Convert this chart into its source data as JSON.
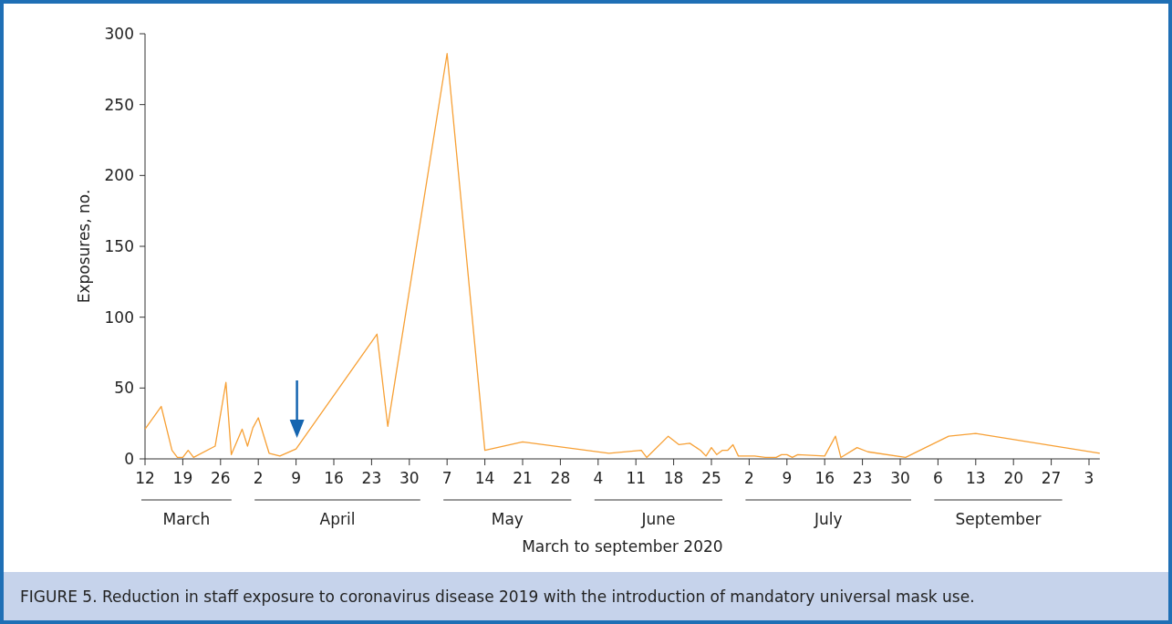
{
  "chart_data": {
    "type": "line",
    "xlabel": "March to september 2020",
    "ylabel": "Exposures, no.",
    "x": [
      "2020-03-12",
      "2020-03-15",
      "2020-03-17",
      "2020-03-18",
      "2020-03-19",
      "2020-03-20",
      "2020-03-21",
      "2020-03-25",
      "2020-03-27",
      "2020-03-28",
      "2020-03-30",
      "2020-03-31",
      "2020-04-01",
      "2020-04-02",
      "2020-04-04",
      "2020-04-06",
      "2020-04-09",
      "2020-04-24",
      "2020-04-26",
      "2020-05-07",
      "2020-05-14",
      "2020-05-21",
      "2020-06-06",
      "2020-06-12",
      "2020-06-13",
      "2020-06-17",
      "2020-06-19",
      "2020-06-21",
      "2020-06-23",
      "2020-06-24",
      "2020-06-25",
      "2020-06-26",
      "2020-06-27",
      "2020-06-28",
      "2020-06-29",
      "2020-06-30",
      "2020-07-03",
      "2020-07-05",
      "2020-07-07",
      "2020-07-08",
      "2020-07-09",
      "2020-07-10",
      "2020-07-11",
      "2020-07-16",
      "2020-07-18",
      "2020-07-19",
      "2020-07-22",
      "2020-07-24",
      "2020-07-31",
      "2020-08-08",
      "2020-08-13",
      "2020-09-05"
    ],
    "series": [
      {
        "color": "#f7a035",
        "values": [
          21,
          37,
          6,
          1,
          1,
          6,
          1,
          9,
          54,
          3,
          21,
          9,
          22,
          29,
          4,
          2,
          7,
          88,
          23,
          286,
          6,
          12,
          4,
          6,
          1,
          16,
          10,
          11,
          6,
          2,
          8,
          3,
          6,
          6,
          10,
          2,
          2,
          1,
          1,
          3,
          3,
          1,
          3,
          2,
          16,
          1,
          8,
          5,
          1,
          16,
          18,
          4
        ]
      }
    ],
    "xlim": [
      "2020-03-12",
      "2020-09-05"
    ],
    "xticks": [
      {
        "value": "2020-03-12",
        "label": "12"
      },
      {
        "value": "2020-03-19",
        "label": "19"
      },
      {
        "value": "2020-03-26",
        "label": "26"
      },
      {
        "value": "2020-04-02",
        "label": "2"
      },
      {
        "value": "2020-04-09",
        "label": "9"
      },
      {
        "value": "2020-04-16",
        "label": "16"
      },
      {
        "value": "2020-04-23",
        "label": "23"
      },
      {
        "value": "2020-04-30",
        "label": "30"
      },
      {
        "value": "2020-05-07",
        "label": "7"
      },
      {
        "value": "2020-05-14",
        "label": "14"
      },
      {
        "value": "2020-05-21",
        "label": "21"
      },
      {
        "value": "2020-05-28",
        "label": "28"
      },
      {
        "value": "2020-06-04",
        "label": "4"
      },
      {
        "value": "2020-06-11",
        "label": "11"
      },
      {
        "value": "2020-06-18",
        "label": "18"
      },
      {
        "value": "2020-06-25",
        "label": "25"
      },
      {
        "value": "2020-07-02",
        "label": "2"
      },
      {
        "value": "2020-07-09",
        "label": "9"
      },
      {
        "value": "2020-07-16",
        "label": "16"
      },
      {
        "value": "2020-07-23",
        "label": "23"
      },
      {
        "value": "2020-07-30",
        "label": "30"
      },
      {
        "value": "2020-08-06",
        "label": "6"
      },
      {
        "value": "2020-08-13",
        "label": "13"
      },
      {
        "value": "2020-08-20",
        "label": "20"
      },
      {
        "value": "2020-08-27",
        "label": "27"
      },
      {
        "value": "2020-09-03",
        "label": "3"
      }
    ],
    "ylim": [
      0,
      300
    ],
    "yticks": [
      0,
      50,
      100,
      150,
      200,
      250,
      300
    ],
    "grid": false,
    "marker": "none",
    "line_style": "solid",
    "annotations": [
      "March",
      "April",
      "May",
      "June",
      "July",
      "September",
      "FIGURE 5. Reduction in staff exposure to coronavirus disease 2019 with the introduction of mandatory universal mask use."
    ]
  }
}
